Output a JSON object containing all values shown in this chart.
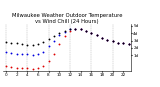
{
  "title": "Milwaukee Weather Outdoor Temperature vs Wind Chill (24 Hours)",
  "background_color": "#ffffff",
  "grid_color": "#888888",
  "hours": [
    0,
    1,
    2,
    3,
    4,
    5,
    6,
    7,
    8,
    9,
    10,
    11,
    12,
    13,
    14,
    15,
    16,
    17,
    18,
    19,
    20,
    21,
    22,
    23
  ],
  "outdoor_temp": [
    28,
    27,
    26,
    25,
    24,
    24,
    25,
    28,
    32,
    36,
    40,
    43,
    45,
    46,
    45,
    43,
    40,
    37,
    34,
    31,
    29,
    27,
    26,
    25
  ],
  "wind_chill": [
    14,
    13,
    12,
    11,
    11,
    10,
    11,
    15,
    22,
    30,
    37,
    42,
    45,
    46,
    45,
    43,
    40,
    37,
    34,
    31,
    29,
    27,
    26,
    25
  ],
  "extra_temp": [
    -5,
    -6,
    -7,
    -8,
    -8,
    -9,
    -8,
    -5,
    2,
    12,
    25,
    36,
    43,
    46,
    45,
    43,
    40,
    37,
    34,
    31,
    29,
    27,
    26,
    25
  ],
  "ylim": [
    -12,
    52
  ],
  "ytick_vals": [
    10,
    20,
    30,
    40,
    50
  ],
  "ytick_labels": [
    "1d",
    "2d",
    "3d",
    "4d",
    "5d"
  ],
  "outdoor_color": "#000000",
  "wind_chill_color": "#0000dd",
  "extra_color": "#dd0000",
  "dot_size": 1.8,
  "title_fontsize": 3.8,
  "tick_fontsize": 3.0,
  "vline_positions": [
    0,
    4,
    8,
    12,
    16,
    20
  ],
  "xtick_positions": [
    0,
    2,
    4,
    6,
    8,
    10,
    12,
    14,
    16,
    18,
    20,
    22
  ],
  "xtick_labels": [
    "0",
    "2",
    "4",
    "6",
    "8",
    "10",
    "12",
    "14",
    "16",
    "18",
    "20",
    "22"
  ]
}
